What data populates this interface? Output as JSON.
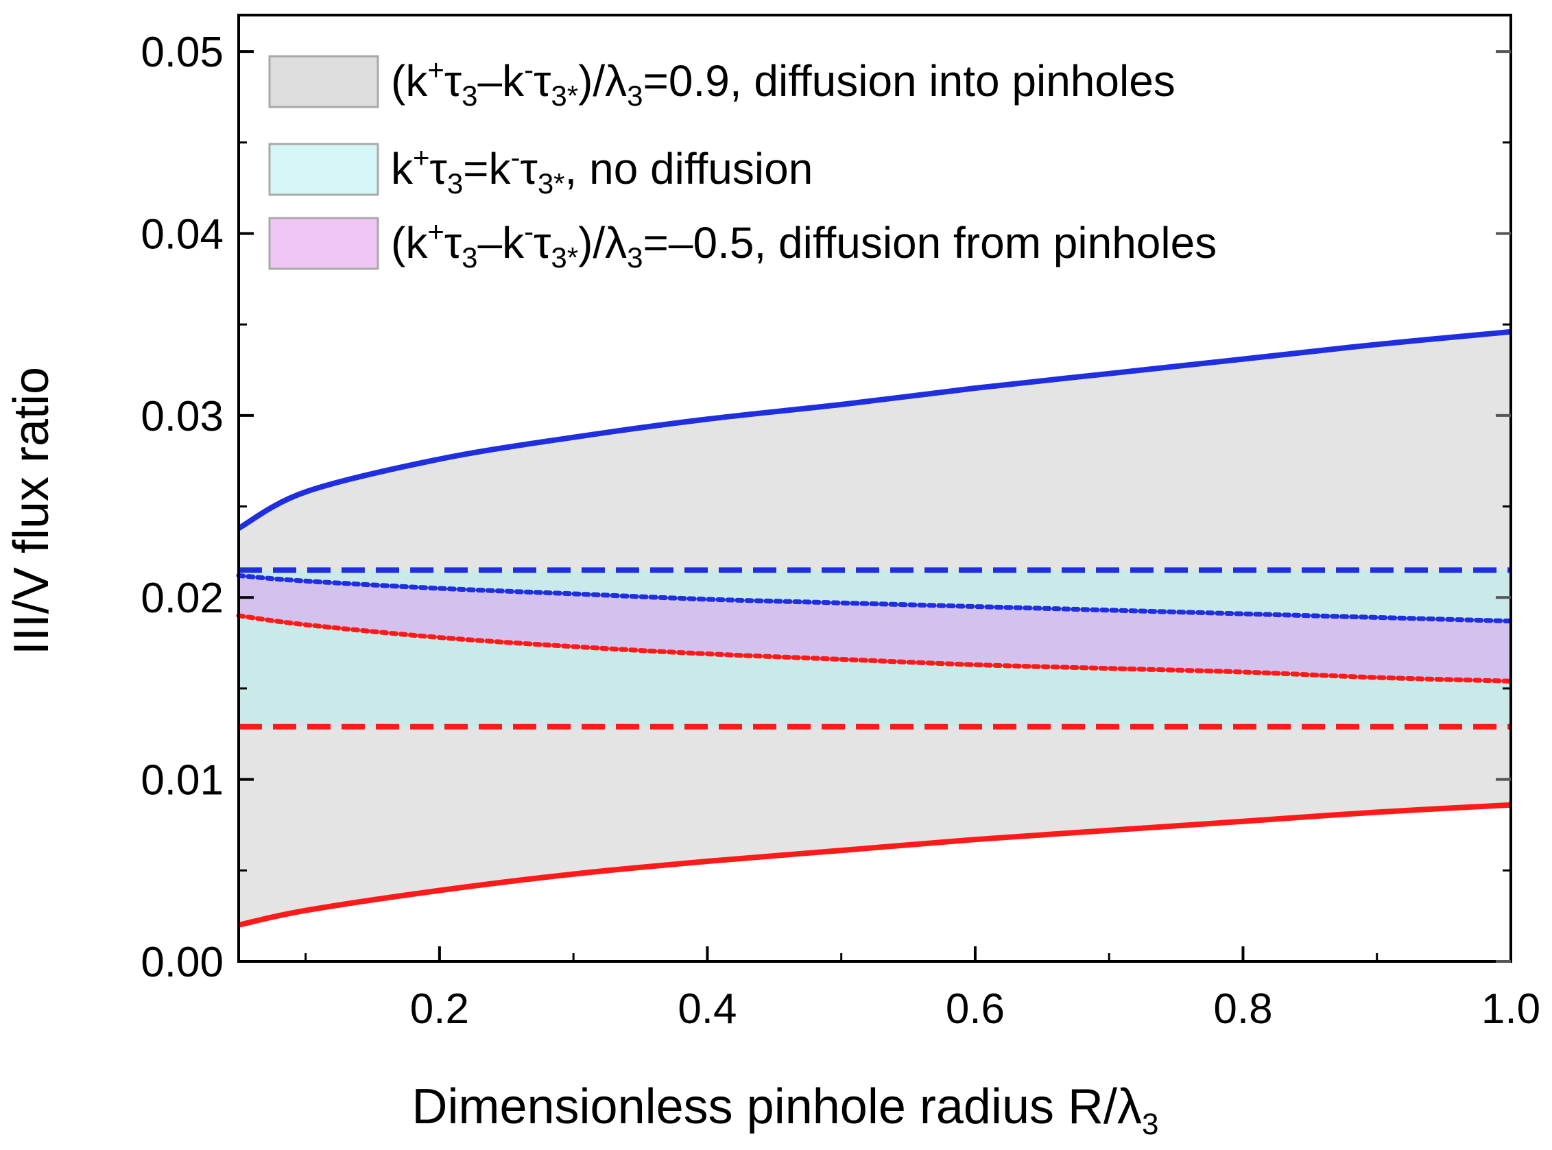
{
  "chart_data": {
    "type": "line",
    "xlabel": "Dimensionless pinhole radius R/λ",
    "xlabel_subscript": "3",
    "ylabel": "III/V flux ratio",
    "xlim": [
      0.05,
      1.0
    ],
    "ylim": [
      0.0,
      0.052
    ],
    "x_ticks": [
      0.2,
      0.4,
      0.6,
      0.8,
      1.0
    ],
    "x_tick_labels": [
      "0.2",
      "0.4",
      "0.6",
      "0.8",
      "1.0"
    ],
    "y_ticks": [
      0.0,
      0.01,
      0.02,
      0.03,
      0.04,
      0.05
    ],
    "y_tick_labels": [
      "0.00",
      "0.01",
      "0.02",
      "0.03",
      "0.04",
      "0.05"
    ],
    "legend_position": "top-left",
    "legend": [
      {
        "name": "(k+τ3–k-τ3*)/λ3=0.9, diffusion into pinholes",
        "label_prefix": "(k",
        "sup1": "+",
        "tau1": "τ",
        "sub1": "3",
        "minus": "–k",
        "sup2": "-",
        "tau2": "τ",
        "sub2": "3*",
        "close": ")/λ",
        "sub3": "3",
        "tail": "=0.9, diffusion into pinholes",
        "color": "#d9d9d9"
      },
      {
        "name": "k+τ3=k-τ3*, no diffusion",
        "label_prefix": "k",
        "sup1": "+",
        "tau1": "τ",
        "sub1": "3",
        "mid": "=k",
        "sup2": "-",
        "tau2": "τ",
        "sub2": "3*",
        "tail": ", no diffusion",
        "color": "#c8ecec"
      },
      {
        "name": "(k+τ3–k-τ3*)/λ3=–0.5, diffusion from pinholes",
        "label_prefix": "(k",
        "sup1": "+",
        "tau1": "τ",
        "sub1": "3",
        "minus": "–k",
        "sup2": "-",
        "tau2": "τ",
        "sub2": "3*",
        "close": ")/λ",
        "sub3": "3",
        "tail": "=–0.5, diffusion from pinholes",
        "color": "#e2b4ee"
      }
    ],
    "x": [
      0.05,
      0.1,
      0.2,
      0.3,
      0.4,
      0.5,
      0.6,
      0.7,
      0.8,
      0.9,
      1.0
    ],
    "series": [
      {
        "name": "upper bound, diffusion into pinholes (blue solid)",
        "style": "solid",
        "color": "#1f2fe0",
        "values": [
          0.0238,
          0.0258,
          0.0276,
          0.0288,
          0.0298,
          0.0306,
          0.0315,
          0.0323,
          0.0331,
          0.0339,
          0.0346
        ]
      },
      {
        "name": "lower bound, diffusion into pinholes (red solid)",
        "style": "solid",
        "color": "#ff1a1a",
        "values": [
          0.002,
          0.0028,
          0.0039,
          0.0048,
          0.0055,
          0.0061,
          0.0067,
          0.0072,
          0.0077,
          0.0082,
          0.0086
        ]
      },
      {
        "name": "upper bound, no diffusion (blue dashed)",
        "style": "dashed",
        "color": "#1f2fe0",
        "values": [
          0.0215,
          0.0215,
          0.0215,
          0.0215,
          0.0215,
          0.0215,
          0.0215,
          0.0215,
          0.0215,
          0.0215,
          0.0215
        ]
      },
      {
        "name": "lower bound, no diffusion (red dashed)",
        "style": "dashed",
        "color": "#ff1a1a",
        "values": [
          0.0129,
          0.0129,
          0.0129,
          0.0129,
          0.0129,
          0.0129,
          0.0129,
          0.0129,
          0.0129,
          0.0129,
          0.0129
        ]
      },
      {
        "name": "upper bound, diffusion from pinholes (blue dotted)",
        "style": "dotted",
        "color": "#1f2fe0",
        "values": [
          0.0212,
          0.0209,
          0.0205,
          0.0202,
          0.0199,
          0.0197,
          0.0195,
          0.0193,
          0.0191,
          0.0189,
          0.0187
        ]
      },
      {
        "name": "lower bound, diffusion from pinholes (red dotted)",
        "style": "dotted",
        "color": "#ff1a1a",
        "values": [
          0.019,
          0.0185,
          0.0178,
          0.0173,
          0.0169,
          0.0166,
          0.0163,
          0.0161,
          0.0159,
          0.0156,
          0.0154
        ]
      }
    ],
    "bands": [
      {
        "legend_index": 0,
        "upper_series": 0,
        "lower_series": 1,
        "color": "#d9d9d9",
        "opacity": 0.7
      },
      {
        "legend_index": 1,
        "upper_series": 2,
        "lower_series": 3,
        "color": "#c2ecec",
        "opacity": 0.75
      },
      {
        "legend_index": 2,
        "upper_series": 4,
        "lower_series": 5,
        "color": "#d8a6ee",
        "opacity": 0.6
      }
    ]
  }
}
